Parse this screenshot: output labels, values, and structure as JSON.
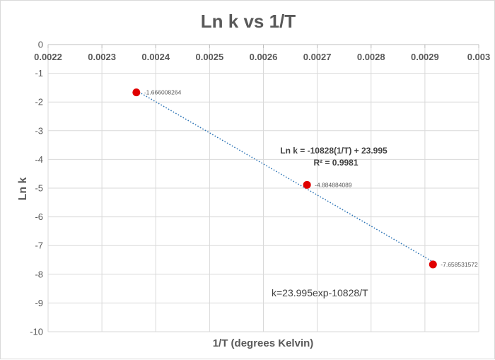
{
  "chart_data": {
    "type": "scatter",
    "title": "Ln k vs 1/T",
    "xlabel": "1/T (degrees Kelvin)",
    "ylabel": "Ln k",
    "xlim": [
      0.0022,
      0.003
    ],
    "ylim": [
      -10,
      0
    ],
    "x_ticks": [
      "0.0022",
      "0.0023",
      "0.0024",
      "0.0025",
      "0.0026",
      "0.0027",
      "0.0028",
      "0.0029",
      "0.003"
    ],
    "y_ticks": [
      "0",
      "-1",
      "-2",
      "-3",
      "-4",
      "-5",
      "-6",
      "-7",
      "-8",
      "-9",
      "-10"
    ],
    "grid": true,
    "series": [
      {
        "points": [
          {
            "x": 0.002364,
            "y": -1.666008264,
            "label": "-1.666008264"
          },
          {
            "x": 0.002681,
            "y": -4.884884089,
            "label": "-4.884884089"
          },
          {
            "x": 0.002915,
            "y": -7.658531572,
            "label": "-7.658531572"
          }
        ],
        "color": "#e00000"
      }
    ],
    "trendline": {
      "type": "linear",
      "slope": -10828,
      "intercept": 23.995,
      "color": "#2e75b6",
      "equation": "Ln k = -10828(1/T) + 23.995",
      "r_squared": "R² = 0.9981"
    },
    "annotations": [
      "k=23.995exp-10828/T"
    ]
  }
}
